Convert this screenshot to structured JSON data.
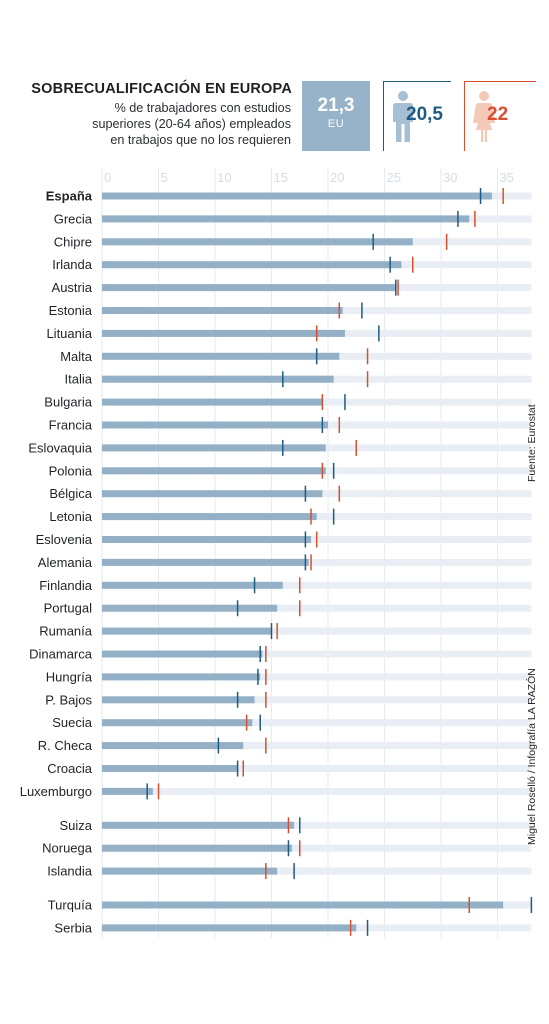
{
  "header": {
    "title": "SOBRECUALIFICACIÓN EN EUROPA",
    "subtitle_lines": [
      "% de trabajadores con estudios",
      "superiores (20-64 años) empleados",
      "en trabajos que no los requieren"
    ]
  },
  "summary": {
    "eu_value": "21,3",
    "eu_label": "EU",
    "men_value": "20,5",
    "women_value": "22"
  },
  "notes": {
    "source": "Fuente: Eurostat",
    "credit": "Miguel Roselló / Infografía LA RAZÓN"
  },
  "colors": {
    "total_bar": "#93b0c7",
    "track": "#e9edf4",
    "grid": "#e6ebf1",
    "men_marker": "#1e5b82",
    "women_marker": "#d84e2e"
  },
  "chart_data": {
    "type": "bar",
    "orientation": "horizontal",
    "xlim": [
      0,
      38
    ],
    "ticks": [
      0,
      5,
      10,
      15,
      20,
      25,
      30,
      35
    ],
    "series": [
      {
        "key": "total",
        "values": [
          34.5,
          32.5,
          27.5,
          26.5,
          26.0,
          21.3,
          21.5,
          21.0,
          20.5,
          19.5,
          20.0,
          19.8,
          19.8,
          19.5,
          19.0,
          18.5,
          18.3,
          16.0,
          15.5,
          15.0,
          14.2,
          14.0,
          13.5,
          13.3,
          12.5,
          12.0,
          4.5,
          17.0,
          16.8,
          15.5,
          35.5,
          22.5
        ]
      },
      {
        "key": "men",
        "values": [
          33.5,
          31.5,
          24.0,
          25.5,
          26.0,
          23.0,
          24.5,
          19.0,
          16.0,
          21.5,
          19.5,
          16.0,
          20.5,
          18.0,
          20.5,
          18.0,
          18.0,
          13.5,
          12.0,
          15.0,
          14.0,
          13.8,
          12.0,
          14.0,
          10.3,
          12.0,
          4.0,
          17.5,
          16.5,
          17.0,
          38.0,
          23.5
        ]
      },
      {
        "key": "women",
        "values": [
          35.5,
          33.0,
          30.5,
          27.5,
          26.2,
          21.0,
          19.0,
          23.5,
          23.5,
          19.5,
          21.0,
          22.5,
          19.5,
          21.0,
          18.5,
          19.0,
          18.5,
          17.5,
          17.5,
          15.5,
          14.5,
          14.5,
          14.5,
          12.8,
          14.5,
          12.5,
          5.0,
          16.5,
          17.5,
          14.5,
          32.5,
          22.0
        ]
      }
    ],
    "categories": [
      "España",
      "Grecia",
      "Chipre",
      "Irlanda",
      "Austria",
      "Estonia",
      "Lituania",
      "Malta",
      "Italia",
      "Bulgaria",
      "Francia",
      "Eslovaquia",
      "Polonia",
      "Bélgica",
      "Letonia",
      "Eslovenia",
      "Alemania",
      "Finlandia",
      "Portugal",
      "Rumanía",
      "Dinamarca",
      "Hungría",
      "P. Bajos",
      "Suecia",
      "R. Checa",
      "Croacia",
      "Luxemburgo",
      "Suiza",
      "Noruega",
      "Islandia",
      "Turquía",
      "Serbia"
    ],
    "highlight": "España"
  }
}
